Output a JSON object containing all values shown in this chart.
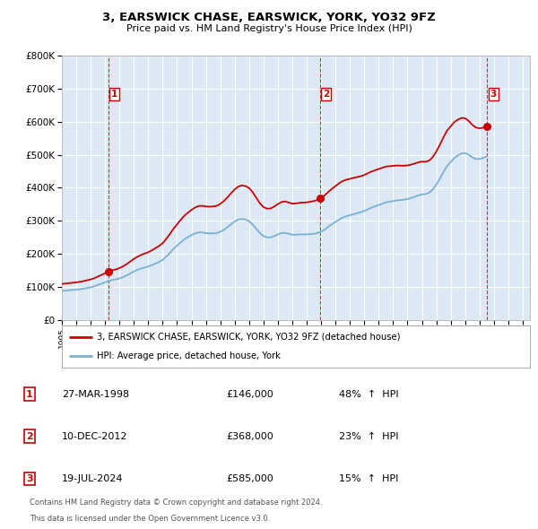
{
  "title": "3, EARSWICK CHASE, EARSWICK, YORK, YO32 9FZ",
  "subtitle": "Price paid vs. HM Land Registry's House Price Index (HPI)",
  "ylim": [
    0,
    800000
  ],
  "yticks": [
    0,
    100000,
    200000,
    300000,
    400000,
    500000,
    600000,
    700000,
    800000
  ],
  "ytick_labels": [
    "£0",
    "£100K",
    "£200K",
    "£300K",
    "£400K",
    "£500K",
    "£600K",
    "£700K",
    "£800K"
  ],
  "xlim_start": 1995.0,
  "xlim_end": 2027.5,
  "fig_bg_color": "#ffffff",
  "plot_bg_color": "#dce9f5",
  "grid_color": "#ffffff",
  "sale_color": "#cc0000",
  "hpi_color": "#7ab0d4",
  "sale_label": "3, EARSWICK CHASE, EARSWICK, YORK, YO32 9FZ (detached house)",
  "hpi_label": "HPI: Average price, detached house, York",
  "transactions": [
    {
      "num": 1,
      "date": "27-MAR-1998",
      "x": 1998.23,
      "price": 146000,
      "pct": "48%",
      "dir": "↑"
    },
    {
      "num": 2,
      "date": "10-DEC-2012",
      "x": 2012.94,
      "price": 368000,
      "pct": "23%",
      "dir": "↑"
    },
    {
      "num": 3,
      "date": "19-JUL-2024",
      "x": 2024.54,
      "price": 585000,
      "pct": "15%",
      "dir": "↑"
    }
  ],
  "footnote1": "Contains HM Land Registry data © Crown copyright and database right 2024.",
  "footnote2": "This data is licensed under the Open Government Licence v3.0.",
  "hpi_data_x": [
    1995.0,
    1995.25,
    1995.5,
    1995.75,
    1996.0,
    1996.25,
    1996.5,
    1996.75,
    1997.0,
    1997.25,
    1997.5,
    1997.75,
    1998.0,
    1998.25,
    1998.5,
    1998.75,
    1999.0,
    1999.25,
    1999.5,
    1999.75,
    2000.0,
    2000.25,
    2000.5,
    2000.75,
    2001.0,
    2001.25,
    2001.5,
    2001.75,
    2002.0,
    2002.25,
    2002.5,
    2002.75,
    2003.0,
    2003.25,
    2003.5,
    2003.75,
    2004.0,
    2004.25,
    2004.5,
    2004.75,
    2005.0,
    2005.25,
    2005.5,
    2005.75,
    2006.0,
    2006.25,
    2006.5,
    2006.75,
    2007.0,
    2007.25,
    2007.5,
    2007.75,
    2008.0,
    2008.25,
    2008.5,
    2008.75,
    2009.0,
    2009.25,
    2009.5,
    2009.75,
    2010.0,
    2010.25,
    2010.5,
    2010.75,
    2011.0,
    2011.25,
    2011.5,
    2011.75,
    2012.0,
    2012.25,
    2012.5,
    2012.75,
    2013.0,
    2013.25,
    2013.5,
    2013.75,
    2014.0,
    2014.25,
    2014.5,
    2014.75,
    2015.0,
    2015.25,
    2015.5,
    2015.75,
    2016.0,
    2016.25,
    2016.5,
    2016.75,
    2017.0,
    2017.25,
    2017.5,
    2017.75,
    2018.0,
    2018.25,
    2018.5,
    2018.75,
    2019.0,
    2019.25,
    2019.5,
    2019.75,
    2020.0,
    2020.25,
    2020.5,
    2020.75,
    2021.0,
    2021.25,
    2021.5,
    2021.75,
    2022.0,
    2022.25,
    2022.5,
    2022.75,
    2023.0,
    2023.25,
    2023.5,
    2023.75,
    2024.0,
    2024.25,
    2024.5
  ],
  "hpi_data_y": [
    88000,
    89000,
    90000,
    91000,
    92000,
    93000,
    95000,
    97000,
    99000,
    102000,
    106000,
    110000,
    114000,
    118000,
    121000,
    123000,
    126000,
    130000,
    135000,
    141000,
    147000,
    152000,
    156000,
    159000,
    162000,
    166000,
    171000,
    176000,
    182000,
    192000,
    203000,
    215000,
    225000,
    235000,
    244000,
    251000,
    257000,
    262000,
    265000,
    265000,
    263000,
    262000,
    262000,
    263000,
    267000,
    273000,
    281000,
    290000,
    298000,
    304000,
    306000,
    304000,
    299000,
    289000,
    276000,
    263000,
    254000,
    250000,
    250000,
    254000,
    259000,
    263000,
    264000,
    261000,
    258000,
    258000,
    259000,
    259000,
    259000,
    260000,
    261000,
    263000,
    267000,
    274000,
    282000,
    290000,
    297000,
    304000,
    310000,
    314000,
    317000,
    320000,
    323000,
    326000,
    330000,
    335000,
    340000,
    344000,
    348000,
    352000,
    356000,
    358000,
    360000,
    362000,
    363000,
    364000,
    366000,
    369000,
    373000,
    377000,
    380000,
    381000,
    385000,
    395000,
    410000,
    428000,
    448000,
    466000,
    478000,
    490000,
    498000,
    504000,
    505000,
    500000,
    492000,
    487000,
    487000,
    490000,
    495000
  ]
}
